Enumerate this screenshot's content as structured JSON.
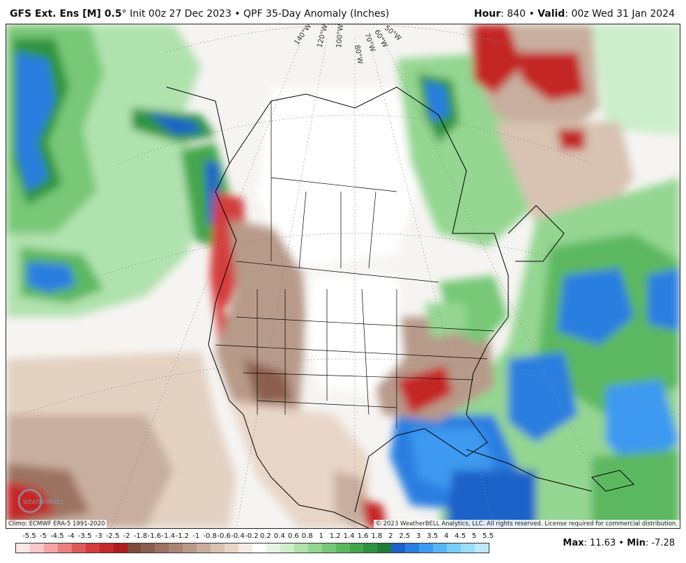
{
  "header": {
    "model": "GFS Ext.  Ens [M] 0.5",
    "degree": "°",
    "init": " Init 00z 27 Dec 2023",
    "separator": " • ",
    "product": "QPF 35-Day Anomaly (Inches)",
    "hour_label": "Hour",
    "hour_value": ": 840",
    "valid_sep": " • ",
    "valid_label": "Valid",
    "valid_value": ": 00z Wed 31 Jan 2024"
  },
  "map": {
    "longitude_labels": [
      "140°W",
      "120°W",
      "100°W",
      "80°W",
      "70°W",
      "60°W",
      "50°W"
    ],
    "climo_note": "Climo: ECMWF ERA-5 1991-2020",
    "copyright": "© 2023 WeatherBELL Analytics, LLC. All rights reserved. License required for commercial distribution.",
    "logo_text": "WEATHERBELL"
  },
  "colorbar": {
    "labels": [
      "-5.5",
      "-5",
      "-4.5",
      "-4",
      "-3.5",
      "-3",
      "-2.5",
      "-2",
      "-1.8",
      "-1.6",
      "-1.4",
      "-1.2",
      "-1",
      "-0.8",
      "-0.6",
      "-0.4",
      "-0.2",
      "0.2",
      "0.4",
      "0.6",
      "0.8",
      "1",
      "1.2",
      "1.4",
      "1.6",
      "1.8",
      "2",
      "2.5",
      "3",
      "3.5",
      "4",
      "4.5",
      "5",
      "5.5"
    ],
    "colors": [
      "#fde6e6",
      "#fac8c8",
      "#f4a4a4",
      "#ec7e7e",
      "#e05a5a",
      "#d43c3c",
      "#c42828",
      "#b01c1c",
      "#7e4a3c",
      "#8c5e4e",
      "#9c7262",
      "#aa8676",
      "#b89a8a",
      "#c8ae9e",
      "#d8c2b2",
      "#e8d6c8",
      "#f3ece6",
      "#ffffff",
      "#e6f6e4",
      "#cdeecb",
      "#b0e2ae",
      "#94d692",
      "#78c878",
      "#5cb860",
      "#44a64c",
      "#2f9440",
      "#1f7c38",
      "#1c62c8",
      "#2a7ee0",
      "#3c9af0",
      "#58b4f4",
      "#78cef6",
      "#9cdcf8",
      "#bde8f8"
    ]
  },
  "stats": {
    "max_label": "Max",
    "max_value": ": 11.63",
    "sep": " • ",
    "min_label": "Min",
    "min_value": ": -7.28"
  }
}
